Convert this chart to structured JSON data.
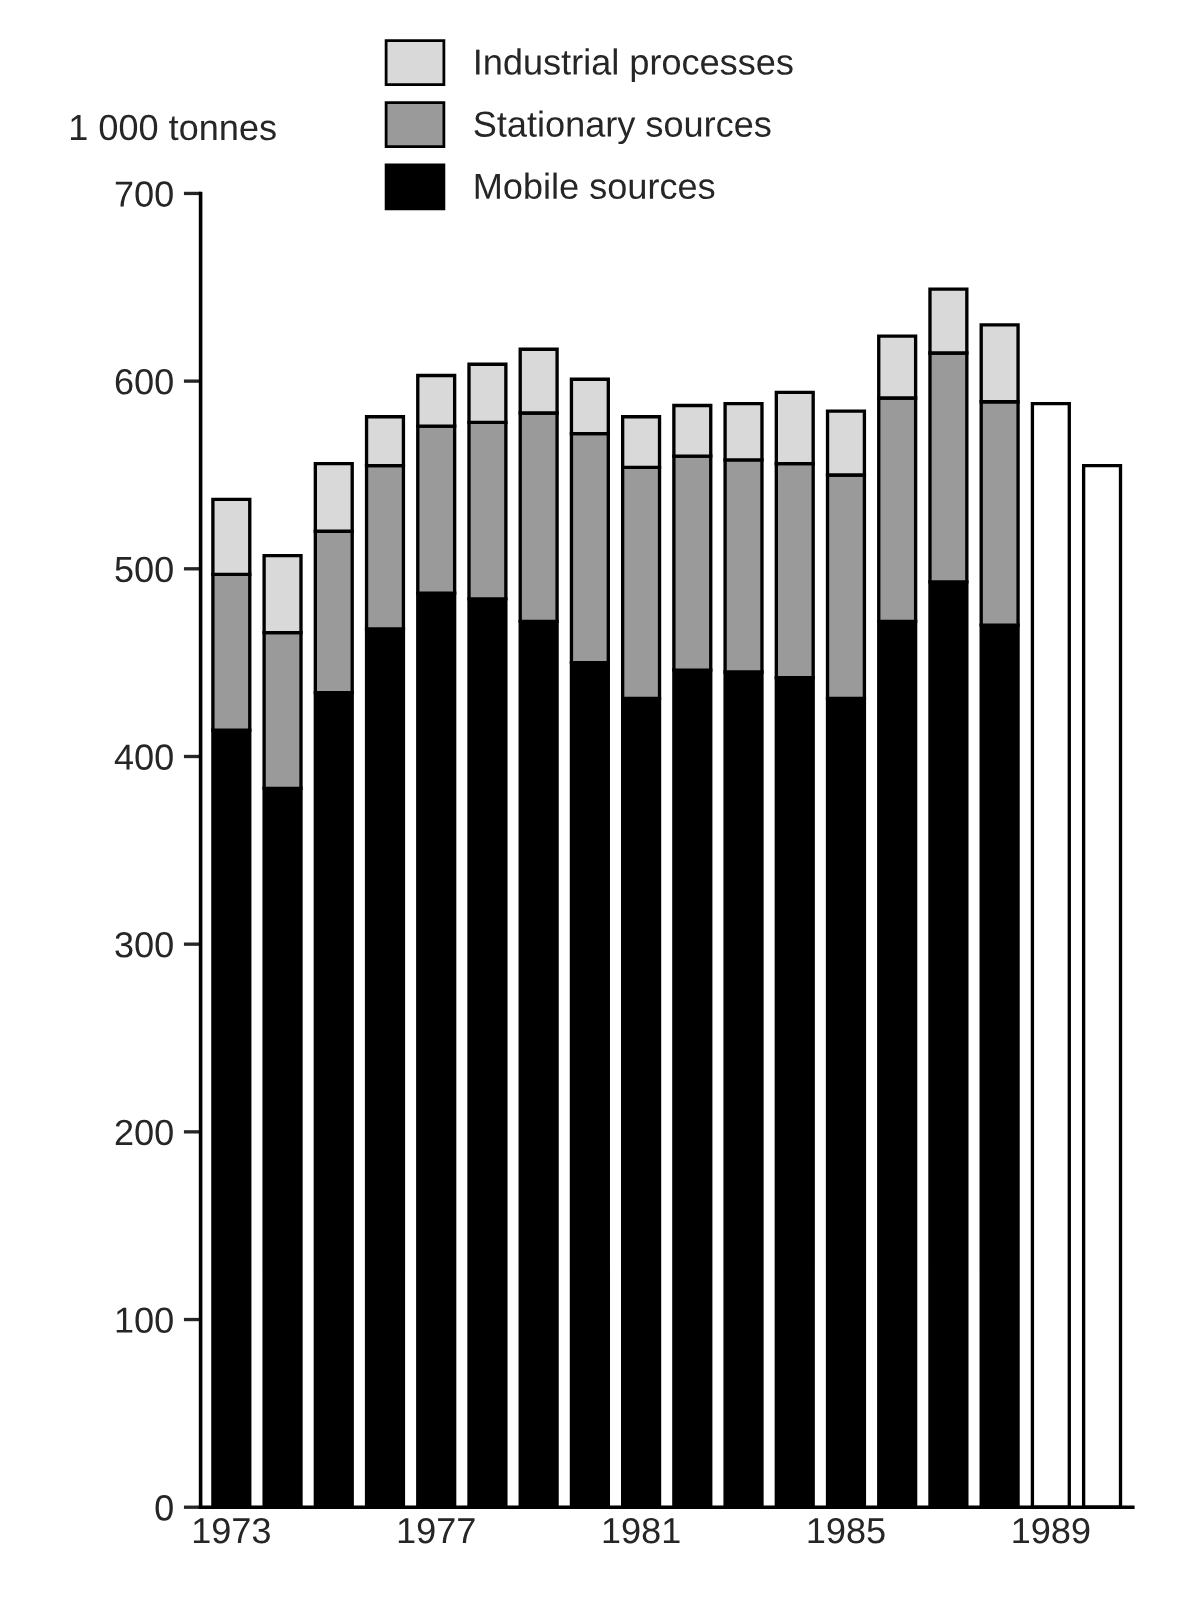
{
  "chart_data": {
    "type": "bar",
    "stacked": true,
    "ylabel": "1 000 tonnes",
    "categories": [
      "1973",
      null,
      null,
      null,
      "1977",
      null,
      null,
      null,
      "1981",
      null,
      null,
      null,
      "1985",
      null,
      null,
      null,
      "1989",
      null
    ],
    "series": [
      {
        "name": "Mobile sources",
        "color": "#000000",
        "values": [
          414,
          383,
          434,
          468,
          487,
          484,
          472,
          450,
          431,
          446,
          445,
          442,
          431,
          472,
          493,
          470,
          null,
          null
        ]
      },
      {
        "name": "Stationary sources",
        "color": "#9a9a9a",
        "values": [
          83,
          83,
          86,
          87,
          89,
          94,
          111,
          122,
          123,
          114,
          113,
          114,
          119,
          119,
          122,
          119,
          null,
          null
        ]
      },
      {
        "name": "Industrial processes",
        "color": "#d9d9d9",
        "values": [
          40,
          41,
          36,
          26,
          27,
          31,
          34,
          29,
          27,
          27,
          30,
          38,
          34,
          33,
          34,
          41,
          null,
          null
        ]
      },
      {
        "color": "#ffffff",
        "values": [
          null,
          null,
          null,
          null,
          null,
          null,
          null,
          null,
          null,
          null,
          null,
          null,
          null,
          null,
          null,
          null,
          588,
          555
        ]
      }
    ],
    "ylim": [
      0,
      700
    ],
    "yticks": [
      0,
      100,
      200,
      300,
      400,
      500,
      600,
      700
    ],
    "legend": "top",
    "grid": false
  }
}
